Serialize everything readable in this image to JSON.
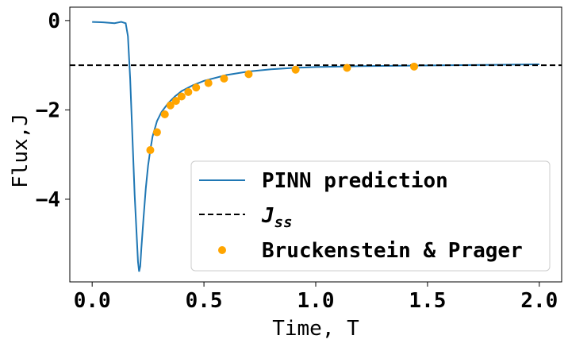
{
  "chart_data": {
    "type": "line",
    "xlabel": "Time, T",
    "ylabel": "Flux,J",
    "xlim": [
      -0.1,
      2.1
    ],
    "ylim": [
      -5.85,
      0.3
    ],
    "xticks": [
      "0.0",
      "0.5",
      "1.0",
      "1.5",
      "2.0"
    ],
    "xtick_values": [
      0.0,
      0.5,
      1.0,
      1.5,
      2.0
    ],
    "yticks": [
      "0",
      "−2",
      "−4"
    ],
    "ytick_values": [
      0,
      -2,
      -4
    ],
    "grid": false,
    "legend_position": "lower-right",
    "series": [
      {
        "name": "PINN prediction",
        "kind": "line",
        "color": "#1f77b4",
        "x": [
          0.0,
          0.05,
          0.1,
          0.13,
          0.15,
          0.16,
          0.17,
          0.18,
          0.19,
          0.2,
          0.205,
          0.21,
          0.215,
          0.22,
          0.23,
          0.24,
          0.25,
          0.26,
          0.27,
          0.29,
          0.31,
          0.34,
          0.37,
          0.4,
          0.45,
          0.5,
          0.6,
          0.7,
          0.8,
          0.9,
          1.0,
          1.1,
          1.2,
          1.4,
          1.6,
          1.8,
          2.0
        ],
        "y": [
          -0.03,
          -0.04,
          -0.06,
          -0.03,
          -0.06,
          -0.35,
          -1.3,
          -2.6,
          -3.9,
          -4.9,
          -5.4,
          -5.62,
          -5.5,
          -5.1,
          -4.4,
          -3.75,
          -3.25,
          -2.9,
          -2.6,
          -2.25,
          -2.05,
          -1.85,
          -1.7,
          -1.58,
          -1.45,
          -1.35,
          -1.22,
          -1.14,
          -1.09,
          -1.06,
          -1.04,
          -1.03,
          -1.02,
          -1.01,
          -1.0,
          -0.99,
          -0.98
        ]
      },
      {
        "name": "J_ss",
        "kind": "dashed-hline",
        "color": "#000000",
        "y": -1.0
      },
      {
        "name": "Bruckenstein & Prager",
        "kind": "scatter",
        "color": "#ffa500",
        "x": [
          0.26,
          0.29,
          0.325,
          0.35,
          0.375,
          0.4,
          0.43,
          0.465,
          0.52,
          0.59,
          0.7,
          0.91,
          1.14,
          1.44
        ],
        "y": [
          -2.9,
          -2.5,
          -2.1,
          -1.9,
          -1.8,
          -1.7,
          -1.6,
          -1.5,
          -1.4,
          -1.3,
          -1.2,
          -1.1,
          -1.06,
          -1.03
        ]
      }
    ],
    "legend": {
      "entries": [
        {
          "label": "PINN prediction",
          "italic": false
        },
        {
          "label": "J",
          "sub": "ss",
          "italic": true
        },
        {
          "label": "Bruckenstein & Prager",
          "italic": false
        }
      ]
    }
  }
}
